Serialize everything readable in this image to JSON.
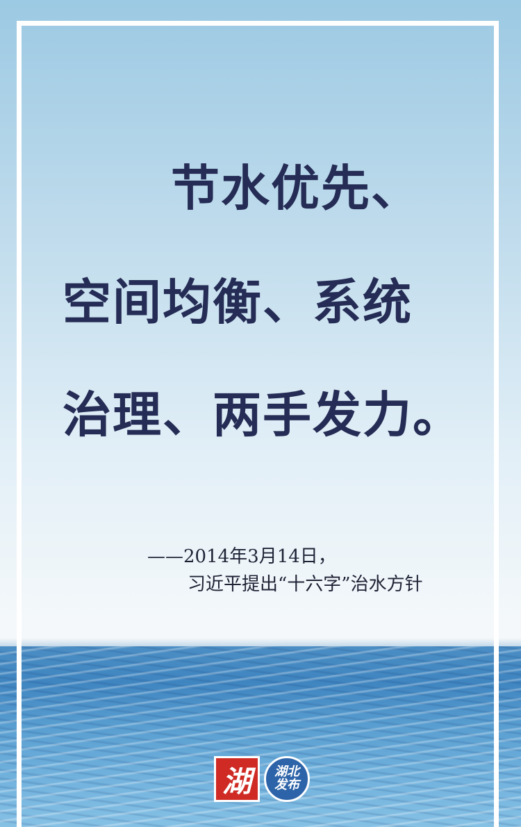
{
  "poster": {
    "headline": {
      "line1": "节水优先、",
      "line2": "空间均衡、系统",
      "line3": "治理、两手发力。"
    },
    "attribution": {
      "line1": "——2014年3月14日，",
      "line2": "习近平提出“十六字”治水方针"
    },
    "logos": {
      "hu_label": "湖",
      "hubei_fabu_line1": "湖北",
      "hubei_fabu_line2": "发布"
    },
    "colors": {
      "headline": "#252c55",
      "sky_top": "#9cc9e3",
      "sea": "#3f85c0",
      "logo_red": "#cf2a24",
      "logo_blue": "#2d63a8"
    }
  }
}
